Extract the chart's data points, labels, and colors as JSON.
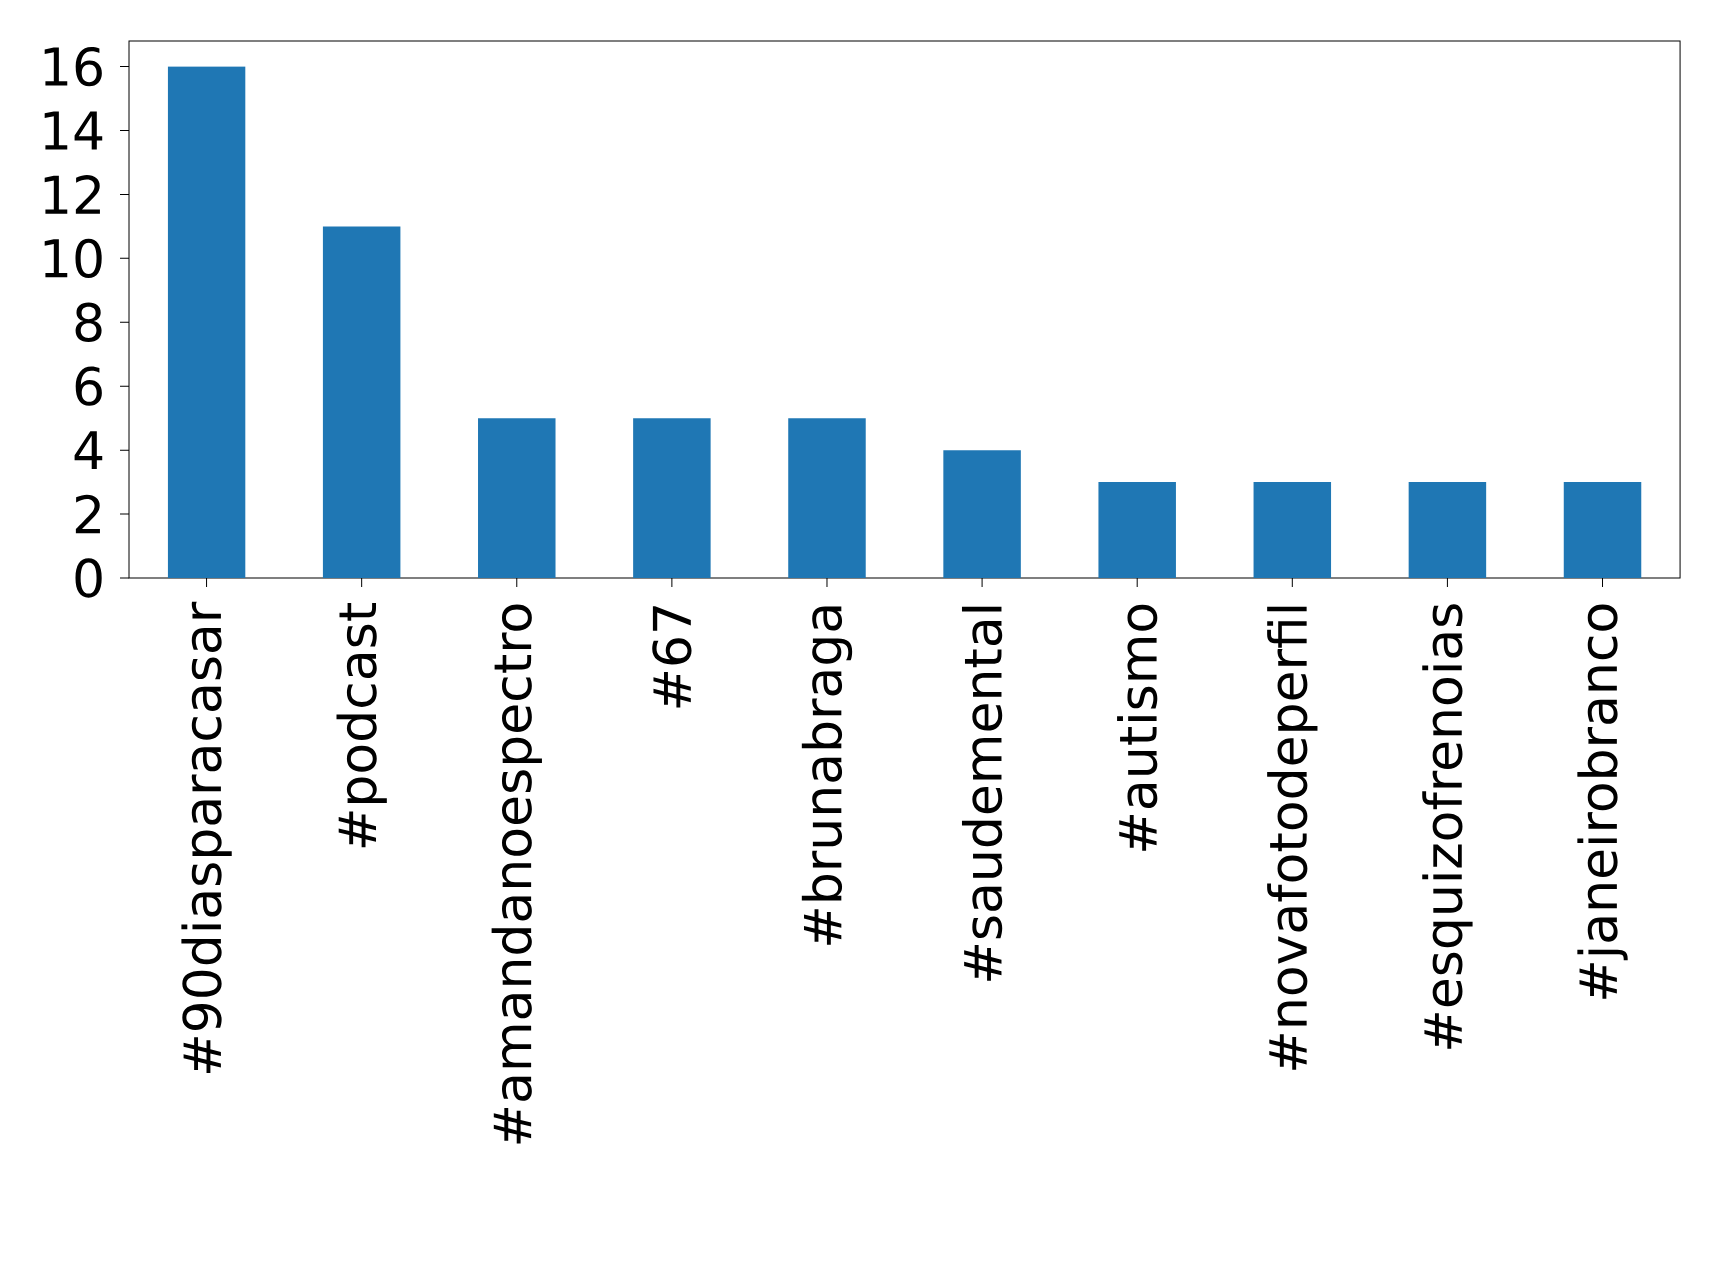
{
  "chart_data": {
    "type": "bar",
    "categories": [
      "#90diasparacasar",
      "#podcast",
      "#amandanoespectro",
      "#67",
      "#brunabraga",
      "#saudemental",
      "#autismo",
      "#novafotodeperfil",
      "#esquizofrenoias",
      "#janeirobranco"
    ],
    "values": [
      16,
      11,
      5,
      5,
      5,
      4,
      3,
      3,
      3,
      3
    ],
    "color": "#1f77b4",
    "ylim": [
      0,
      16.8
    ],
    "yticks": [
      0,
      2,
      4,
      6,
      8,
      10,
      12,
      14,
      16
    ],
    "grid": false
  }
}
